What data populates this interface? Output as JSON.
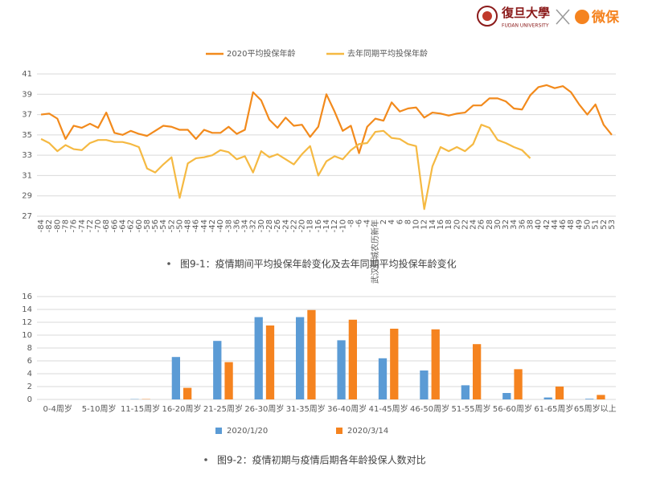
{
  "header": {
    "logo_text": "復旦大學",
    "logo_subtext": "FUDAN UNIVERSITY",
    "partner": "微保"
  },
  "chart_data": [
    {
      "type": "line",
      "caption": "图9-1：疫情期间平均投保年龄变化及去年同期平均投保年龄变化",
      "categories": [
        "-84",
        "-82",
        "-80",
        "-78",
        "-76",
        "-74",
        "-72",
        "-70",
        "-68",
        "-66",
        "-64",
        "-62",
        "-60",
        "-58",
        "-56",
        "-54",
        "-52",
        "-50",
        "-48",
        "-46",
        "-44",
        "-42",
        "-40",
        "-38",
        "-36",
        "-34",
        "-32",
        "-30",
        "-28",
        "-26",
        "-24",
        "-22",
        "-20",
        "-18",
        "-16",
        "-14",
        "-12",
        "-10",
        "-8",
        "-6",
        "-4",
        "武汉封城农历新年",
        "2",
        "4",
        "6",
        "8",
        "10",
        "12",
        "14",
        "16",
        "18",
        "20",
        "22",
        "24",
        "26",
        "28",
        "30",
        "32",
        "34",
        "36",
        "38",
        "40",
        "42",
        "44",
        "46",
        "48",
        "49",
        "50",
        "51",
        "52",
        "53"
      ],
      "series": [
        {
          "name": "2020平均投保年龄",
          "color": "#f28a1c",
          "values": [
            37.0,
            37.1,
            36.6,
            34.6,
            35.9,
            35.7,
            36.1,
            35.7,
            37.2,
            35.2,
            35.0,
            35.4,
            35.1,
            34.9,
            35.4,
            35.9,
            35.8,
            35.5,
            35.5,
            34.6,
            35.5,
            35.2,
            35.2,
            35.8,
            35.1,
            35.5,
            39.2,
            38.4,
            36.5,
            35.7,
            36.7,
            35.9,
            36.0,
            34.8,
            35.8,
            39.0,
            37.3,
            35.4,
            35.9,
            33.2,
            35.8,
            36.6,
            36.4,
            38.2,
            37.3,
            37.6,
            37.7,
            36.7,
            37.2,
            37.1,
            36.9,
            37.1,
            37.2,
            37.9,
            37.9,
            38.6,
            38.6,
            38.3,
            37.6,
            37.5,
            38.9,
            39.7,
            39.9,
            39.6,
            39.8,
            39.2,
            38.0,
            37.0,
            38.0,
            36.0,
            35.0
          ]
        },
        {
          "name": "去年同期平均投保年龄",
          "color": "#f5b942",
          "values": [
            34.6,
            34.2,
            33.4,
            34.0,
            33.6,
            33.5,
            34.2,
            34.5,
            34.5,
            34.3,
            34.3,
            34.1,
            33.8,
            31.7,
            31.3,
            32.1,
            32.8,
            28.8,
            32.2,
            32.7,
            32.8,
            33.0,
            33.5,
            33.3,
            32.6,
            32.9,
            31.3,
            33.4,
            32.8,
            33.1,
            32.6,
            32.1,
            33.1,
            33.9,
            31.0,
            32.4,
            32.9,
            32.6,
            33.5,
            34.1,
            34.2,
            35.3,
            35.4,
            34.7,
            34.6,
            34.1,
            33.9,
            27.7,
            31.9,
            33.8,
            33.4,
            33.8,
            33.4,
            34.1,
            36.0,
            35.7,
            34.5,
            34.2,
            33.8,
            33.5,
            32.7,
            null,
            null,
            null,
            null,
            null,
            null,
            null,
            null,
            null,
            null
          ]
        }
      ],
      "ylim": [
        27,
        41
      ],
      "yticks": [
        27,
        29,
        31,
        33,
        35,
        37,
        39,
        41
      ],
      "grid": true,
      "legend": "top"
    },
    {
      "type": "bar",
      "caption": "图9-2：疫情初期与疫情后期各年龄投保人数对比",
      "categories": [
        "0-4周岁",
        "5-10周岁",
        "11-15周岁",
        "16-20周岁",
        "21-25周岁",
        "26-30周岁",
        "31-35周岁",
        "36-40周岁",
        "41-45周岁",
        "46-50周岁",
        "51-55周岁",
        "56-60周岁",
        "61-65周岁",
        "65周岁以上"
      ],
      "series": [
        {
          "name": "2020/1/20",
          "color": "#5b9bd5",
          "values": [
            0,
            0,
            0.05,
            6.6,
            9.1,
            12.8,
            12.8,
            9.2,
            6.4,
            4.5,
            2.2,
            1.0,
            0.3,
            0.1
          ]
        },
        {
          "name": "2020/3/14",
          "color": "#f5831f",
          "values": [
            0,
            0,
            0.05,
            1.8,
            5.8,
            11.5,
            13.9,
            12.4,
            11.0,
            10.9,
            8.6,
            4.7,
            2.0,
            0.7
          ]
        }
      ],
      "ylim": [
        0,
        16
      ],
      "yticks": [
        0,
        2,
        4,
        6,
        8,
        10,
        12,
        14,
        16
      ],
      "grid": true,
      "legend": "bottom"
    }
  ]
}
